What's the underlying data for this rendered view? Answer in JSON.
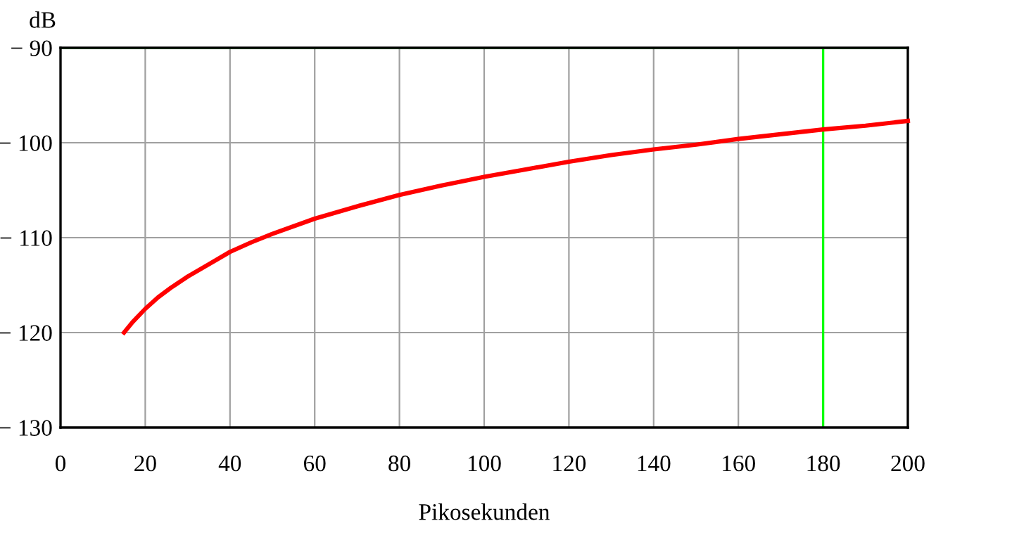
{
  "chart_data": {
    "type": "line",
    "xlabel": "Pikosekunden",
    "ylabel": "dB",
    "xlim": [
      0,
      200
    ],
    "ylim": [
      -130,
      -90
    ],
    "xticks": [
      0,
      20,
      40,
      60,
      80,
      100,
      120,
      140,
      160,
      180,
      200
    ],
    "yticks": [
      {
        "value": -130,
        "label": "− 130"
      },
      {
        "value": -120,
        "label": "− 120"
      },
      {
        "value": -110,
        "label": "− 110"
      },
      {
        "value": -100,
        "label": "− 100"
      },
      {
        "value": -90,
        "label": "− 90"
      }
    ],
    "grid": true,
    "line_style": "solid",
    "marker": "none",
    "ref_lines": [
      {
        "axis": "y",
        "value": -90,
        "color": "#00ff00"
      },
      {
        "axis": "x",
        "value": 180,
        "color": "#00ff00"
      }
    ],
    "series": [
      {
        "color": "#ff0000",
        "x": [
          15,
          17,
          20,
          23,
          26,
          30,
          35,
          40,
          45,
          50,
          60,
          70,
          80,
          90,
          100,
          110,
          120,
          130,
          140,
          150,
          160,
          170,
          180,
          190,
          200
        ],
        "values": [
          -120,
          -118.9,
          -117.5,
          -116.3,
          -115.3,
          -114.1,
          -112.8,
          -111.5,
          -110.5,
          -109.6,
          -108,
          -106.7,
          -105.5,
          -104.5,
          -103.6,
          -102.8,
          -102,
          -101.3,
          -100.7,
          -100.2,
          -99.6,
          -99.1,
          -98.6,
          -98.2,
          -97.7
        ]
      }
    ]
  }
}
